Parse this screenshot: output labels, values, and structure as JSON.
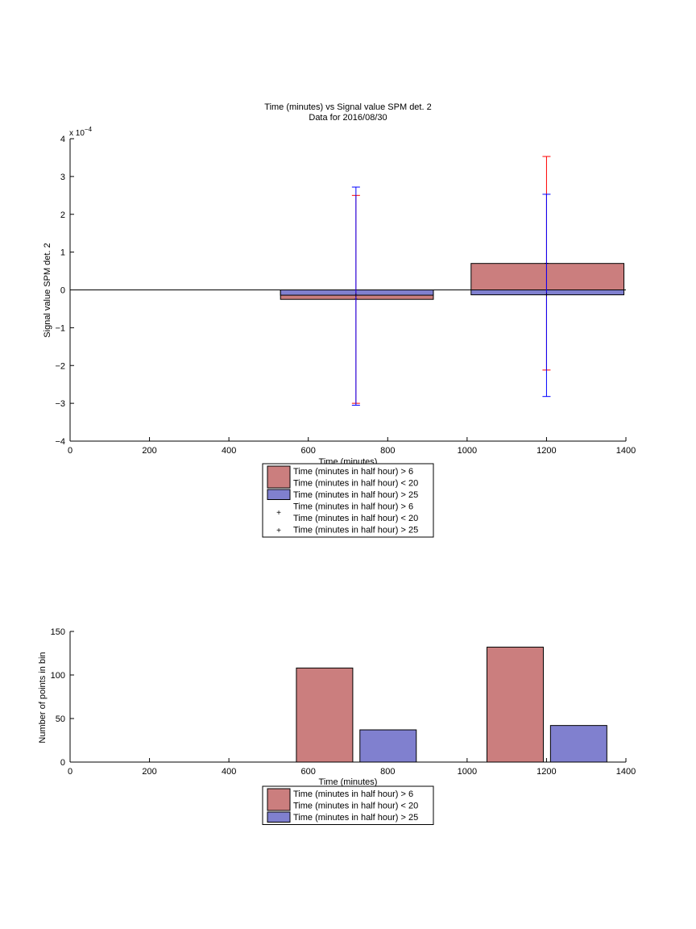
{
  "colors": {
    "red": "#cb7e7e",
    "blue": "#8080cf",
    "red_line": "#ff0000",
    "blue_line": "#0000ff"
  },
  "chart_data": [
    {
      "type": "bar",
      "title": "Time (minutes) vs Signal value SPM det. 2",
      "subtitle": "Data for 2016/08/30",
      "xlabel": "Time (minutes)",
      "ylabel": "Signal value SPM det. 2",
      "exponent_label": "x 10",
      "exponent_power": "−4",
      "xlim": [
        0,
        1400
      ],
      "ylim": [
        -4,
        4
      ],
      "y_scale": "1e-4",
      "x_ticks": [
        "0",
        "200",
        "400",
        "600",
        "800",
        "1000",
        "1200",
        "1400"
      ],
      "y_ticks": [
        "−4",
        "−3",
        "−2",
        "−1",
        "0",
        "1",
        "2",
        "3",
        "4"
      ],
      "bar_mode": "overlaid",
      "bars": [
        {
          "series": "red",
          "x_from": 530,
          "x_to": 915,
          "value": -0.25
        },
        {
          "series": "blue",
          "x_from": 530,
          "x_to": 915,
          "value": -0.14
        },
        {
          "series": "red",
          "x_from": 1010,
          "x_to": 1395,
          "value": 0.7
        },
        {
          "series": "blue",
          "x_from": 1010,
          "x_to": 1395,
          "value": -0.13
        }
      ],
      "errorbars": [
        {
          "series": "red",
          "x": 720,
          "value": -0.25,
          "low": -3.0,
          "high": 2.5
        },
        {
          "series": "blue",
          "x": 720,
          "value": -0.14,
          "low": -3.05,
          "high": 2.72
        },
        {
          "series": "red",
          "x": 1200,
          "value": 0.7,
          "low": -2.12,
          "high": 3.53
        },
        {
          "series": "blue",
          "x": 1200,
          "value": -0.13,
          "low": -2.82,
          "high": 2.53
        }
      ],
      "legend": {
        "placement": "below",
        "entries": [
          {
            "swatch": "patch-red",
            "lines": [
              "Time (minutes in half hour) > 6",
              "Time (minutes in half hour) < 20"
            ]
          },
          {
            "swatch": "patch-blue",
            "lines": [
              "Time (minutes in half hour) > 25"
            ]
          },
          {
            "swatch": "marker-red",
            "lines": [
              "Time (minutes in half hour) > 6",
              "Time (minutes in half hour) < 20"
            ]
          },
          {
            "swatch": "marker-blue",
            "lines": [
              "Time (minutes in half hour) > 25"
            ]
          }
        ]
      }
    },
    {
      "type": "bar",
      "xlabel": "Time (minutes)",
      "ylabel": "Number of points in bin",
      "xlim": [
        0,
        1400
      ],
      "ylim": [
        0,
        150
      ],
      "x_ticks": [
        "0",
        "200",
        "400",
        "600",
        "800",
        "1000",
        "1200",
        "1400"
      ],
      "y_ticks": [
        "0",
        "50",
        "100",
        "150"
      ],
      "bar_mode": "grouped",
      "bars": [
        {
          "series": "red",
          "x_from": 570,
          "x_to": 712,
          "value": 108
        },
        {
          "series": "blue",
          "x_from": 730,
          "x_to": 872,
          "value": 37
        },
        {
          "series": "red",
          "x_from": 1050,
          "x_to": 1192,
          "value": 132
        },
        {
          "series": "blue",
          "x_from": 1210,
          "x_to": 1352,
          "value": 42
        }
      ],
      "legend": {
        "placement": "below",
        "entries": [
          {
            "swatch": "patch-red",
            "lines": [
              "Time (minutes in half hour) > 6",
              "Time (minutes in half hour) < 20"
            ]
          },
          {
            "swatch": "patch-blue",
            "lines": [
              "Time (minutes in half hour) > 25"
            ]
          }
        ]
      }
    }
  ]
}
